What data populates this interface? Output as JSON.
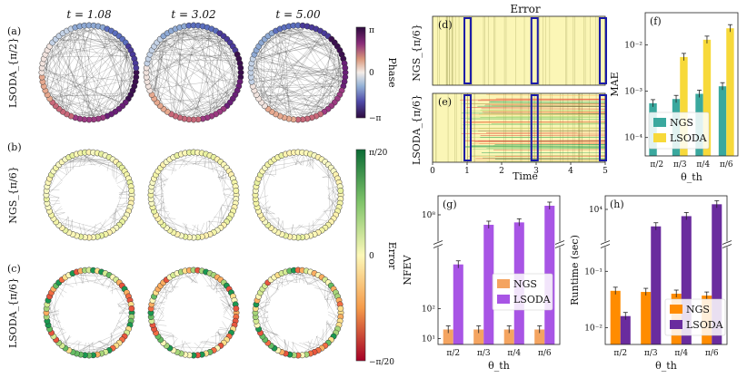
{
  "colors": {
    "ngs_a": "#3aa89e",
    "lsoda_a": "#f7d93a",
    "ngs_b": "#f4a460",
    "lsoda_b": "#a855e5",
    "ngs_c": "#ff8c00",
    "lsoda_c": "#6a2c9e",
    "heat_bg": "#fbf6b6",
    "highlight": "#1a1aa8"
  },
  "columns": {
    "t1": "t = 1.08",
    "t2": "t = 3.02",
    "t3": "t = 5.00"
  },
  "rows": {
    "a": {
      "tag": "(a)",
      "label": "LSODA_{π/2}"
    },
    "b": {
      "tag": "(b)",
      "label": "NGS_{π/6}"
    },
    "c": {
      "tag": "(c)",
      "label": "LSODA_{π/6}"
    }
  },
  "phase_colorbar": {
    "label": "Phase",
    "top": "π",
    "mid": "0",
    "bottom": "−π"
  },
  "error_colorbar": {
    "label": "Error",
    "top": "π/20",
    "mid": "0",
    "bottom": "−π/20"
  },
  "heatmap": {
    "title": "Error",
    "panel_d": {
      "tag": "(d)",
      "label": "NGS_{π/6}"
    },
    "panel_e": {
      "tag": "(e)",
      "label": "LSODA_{π/6}"
    },
    "xlabel": "Time",
    "xticks": [
      "0",
      "1",
      "2",
      "3",
      "4",
      "5"
    ],
    "highlight_times": [
      1.08,
      3.02,
      5.0
    ]
  },
  "chart_data": [
    {
      "id": "f",
      "tag": "(f)",
      "type": "bar",
      "title": "",
      "xlabel": "θ_th",
      "ylabel": "MAE",
      "yscale": "log",
      "ylim": [
        4e-05,
        0.05
      ],
      "yticks": [
        "10⁻⁴",
        "10⁻³",
        "10⁻²"
      ],
      "categories": [
        "π/2",
        "π/3",
        "π/4",
        "π/6"
      ],
      "series": [
        {
          "name": "NGS",
          "values": [
            0.00055,
            0.00068,
            0.00088,
            0.00128
          ]
        },
        {
          "name": "LSODA",
          "values": [
            null,
            0.0055,
            0.013,
            0.023
          ]
        }
      ],
      "legend": "bottom-left"
    },
    {
      "id": "g",
      "tag": "(g)",
      "type": "bar",
      "title": "",
      "xlabel": "θ_th",
      "ylabel": "NFEV",
      "yscale": "log-broken",
      "yticks": [
        "10¹",
        "10²",
        "10⁸"
      ],
      "categories": [
        "π/2",
        "π/3",
        "π/4",
        "π/6"
      ],
      "series": [
        {
          "name": "NGS",
          "values": [
            20,
            20,
            20,
            20
          ]
        },
        {
          "name": "LSODA",
          "values": [
            3000,
            30000000.0,
            40000000.0,
            300000000.0
          ]
        }
      ],
      "legend": "center-right"
    },
    {
      "id": "h",
      "tag": "(h)",
      "type": "bar",
      "title": "",
      "xlabel": "θ_th",
      "ylabel": "Runtime (sec)",
      "yscale": "log-broken",
      "yticks": [
        "10⁻²",
        "10⁻¹",
        "10⁴"
      ],
      "categories": [
        "π/2",
        "π/3",
        "π/4",
        "π/6"
      ],
      "series": [
        {
          "name": "NGS",
          "values": [
            0.045,
            0.043,
            0.04,
            0.037
          ]
        },
        {
          "name": "LSODA",
          "values": [
            0.016,
            1000.0,
            4000.0,
            20000.0
          ]
        }
      ],
      "legend": "bottom-right"
    }
  ]
}
